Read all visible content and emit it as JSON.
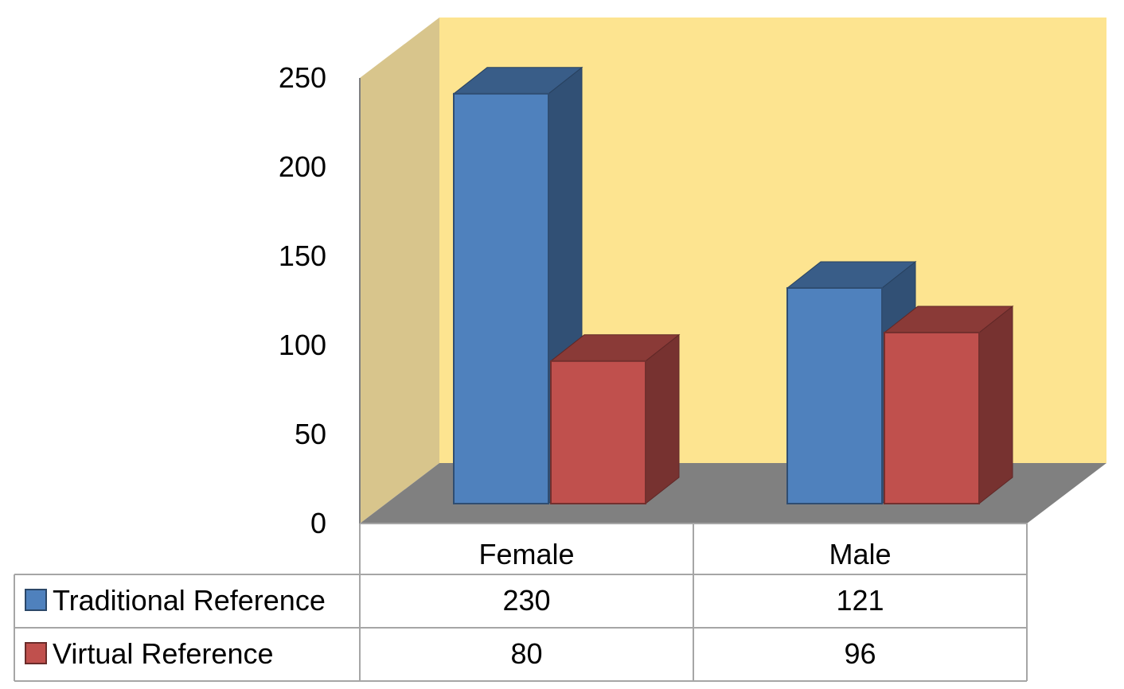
{
  "chart_data": {
    "type": "bar",
    "style": "3d-clustered-column-with-data-table",
    "categories": [
      "Female",
      "Male"
    ],
    "series": [
      {
        "name": "Traditional Reference",
        "values": [
          230,
          121
        ],
        "color": "#4F81BD"
      },
      {
        "name": "Virtual Reference",
        "values": [
          80,
          96
        ],
        "color": "#C0504D"
      }
    ],
    "y_ticks": [
      "0",
      "50",
      "100",
      "150",
      "200",
      "250"
    ],
    "ylim": [
      0,
      250
    ],
    "title": "",
    "xlabel": "",
    "ylabel": "",
    "grid": false,
    "legend": "data-table",
    "colors": {
      "back_wall": "#FDE490",
      "side_wall": "#D8C58C",
      "floor": "#808080"
    }
  }
}
